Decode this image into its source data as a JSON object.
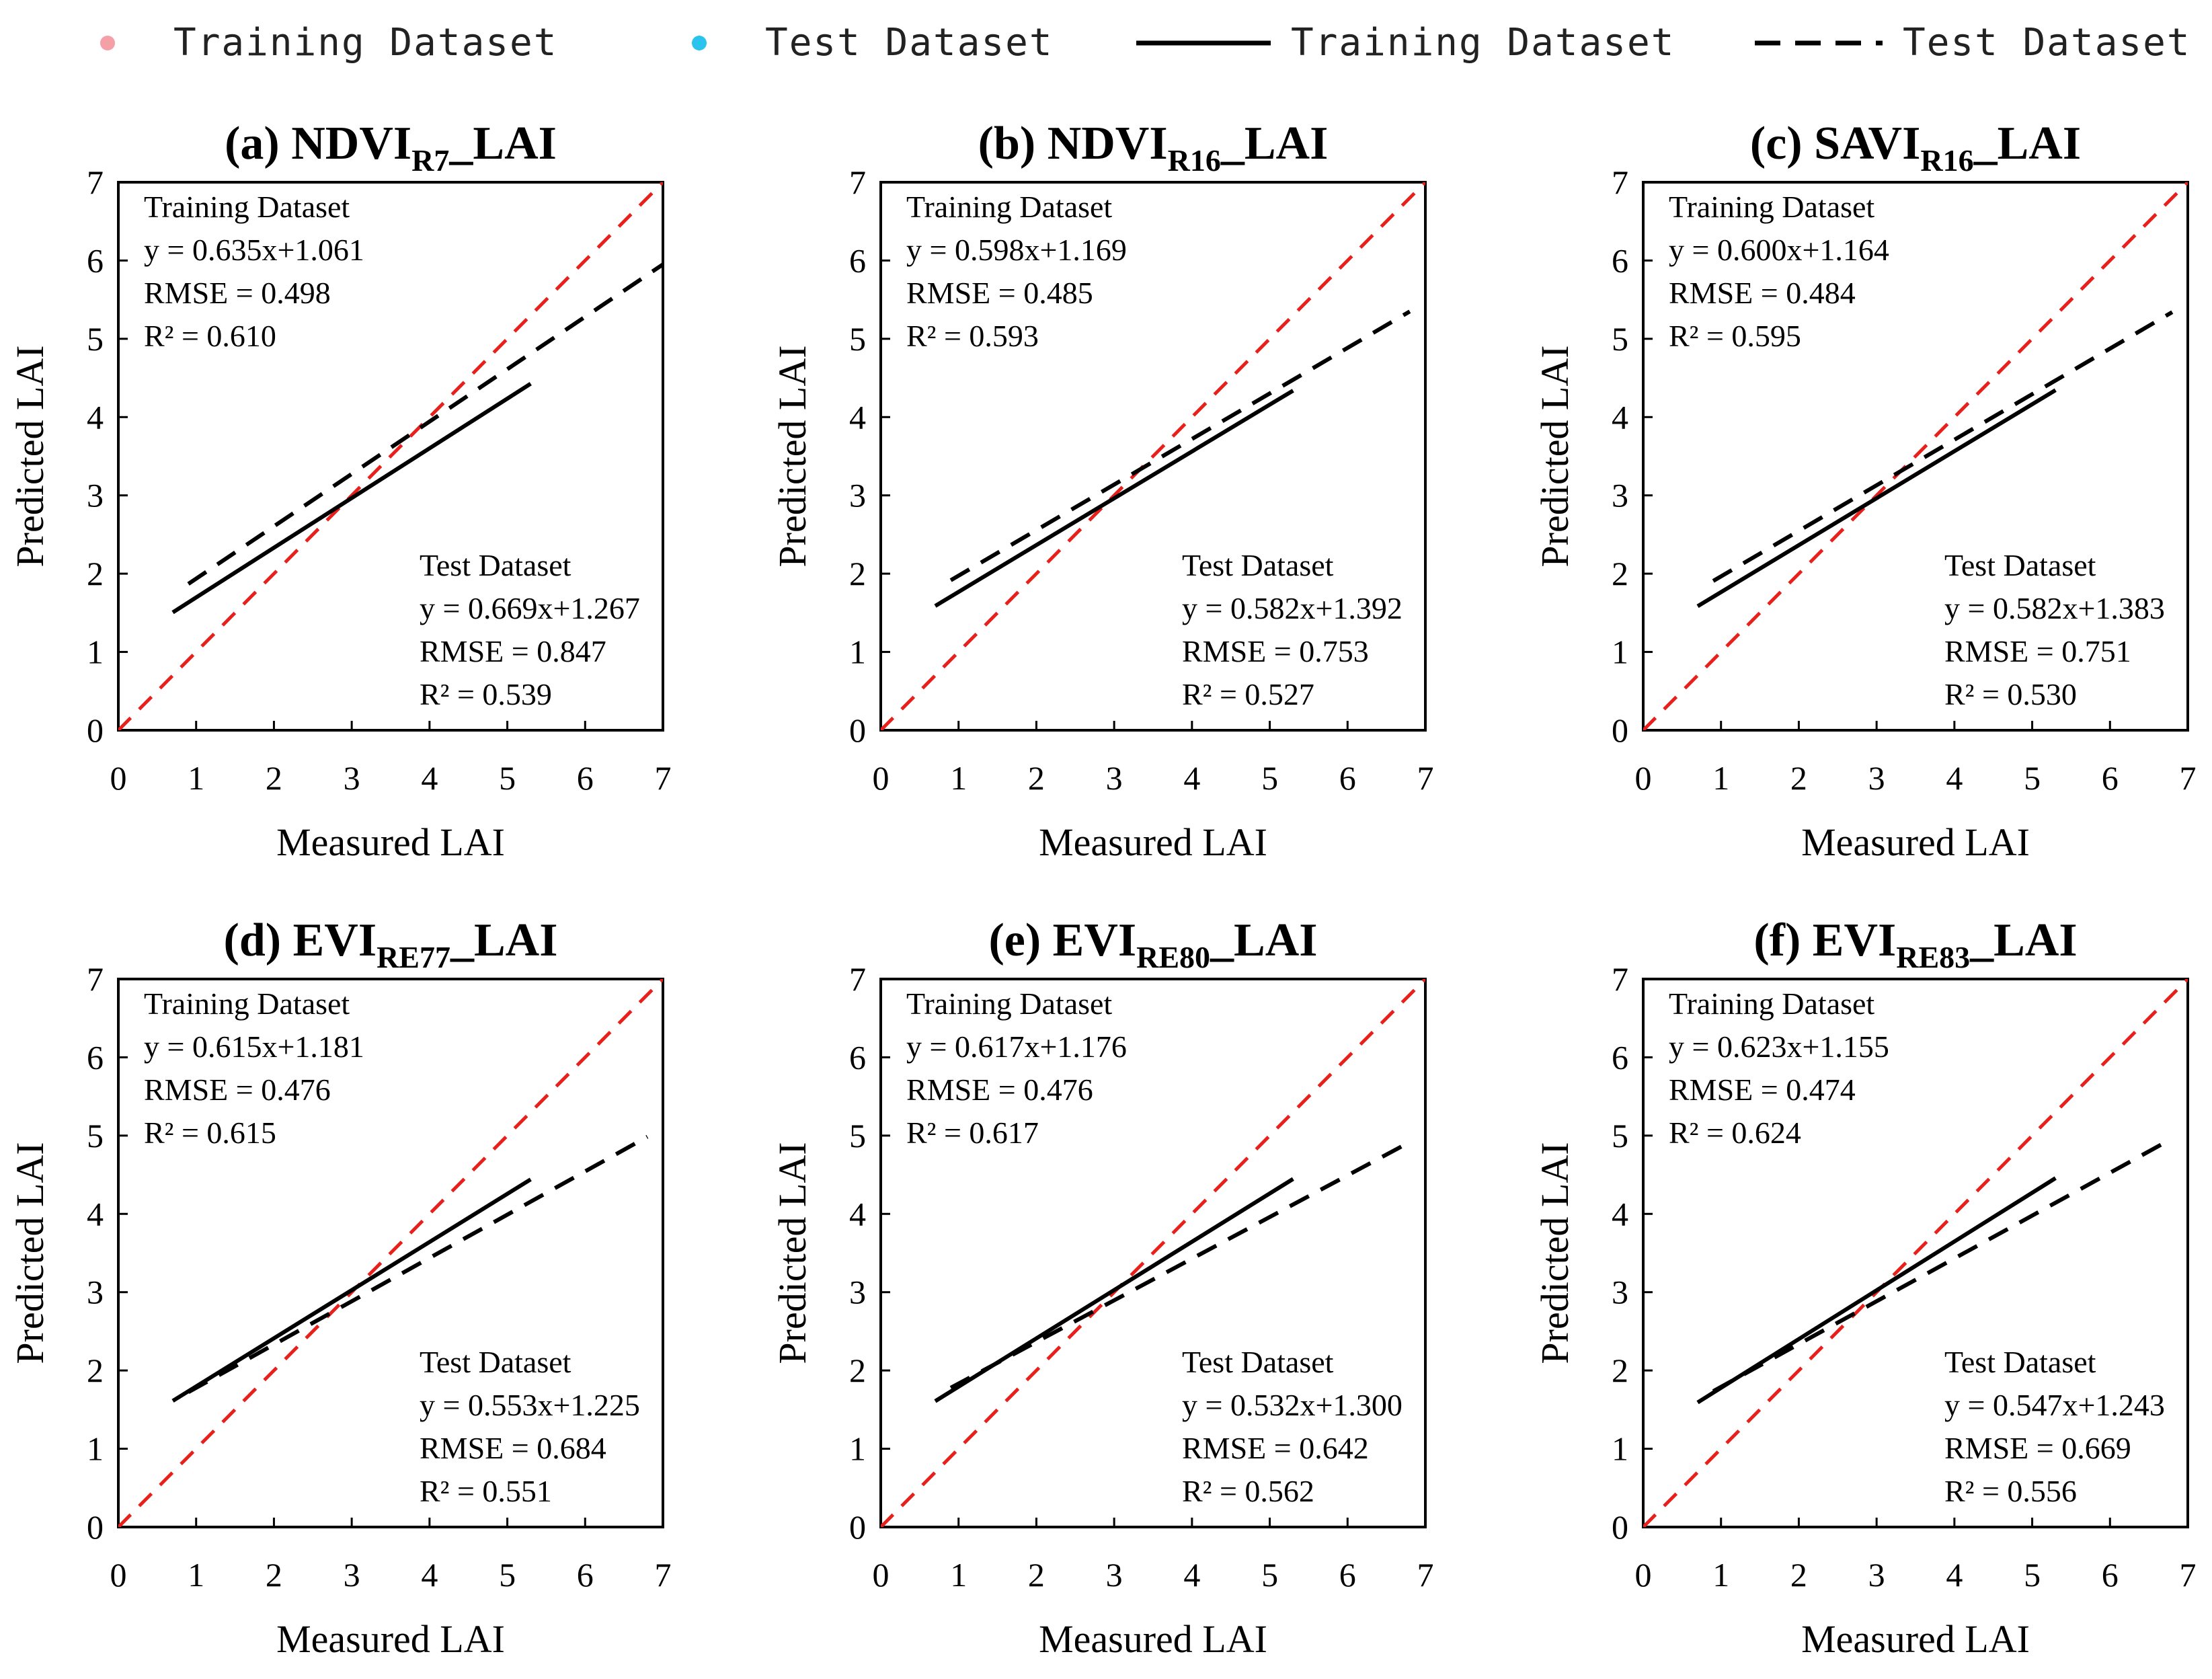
{
  "legend": {
    "items": [
      {
        "label": "Training Dataset",
        "kind": "point",
        "color": "#f4a0a6"
      },
      {
        "label": "Test Dataset",
        "kind": "point",
        "color": "#29c3f0"
      },
      {
        "label": "Training Dataset",
        "kind": "solid-line",
        "color": "#000000"
      },
      {
        "label": "Test Dataset",
        "kind": "dashed-line",
        "color": "#000000"
      }
    ]
  },
  "colors": {
    "training_point": "#f4a0a6",
    "test_point": "#29c3f0",
    "identity_line": "#e8201c",
    "fit_line": "#000000"
  },
  "chart_data": [
    {
      "type": "scatter",
      "panel": "(a)",
      "title_main": "(a) NDVI",
      "title_sub": "R7",
      "title_tail": "_LAI",
      "xlabel": "Measured LAI",
      "ylabel": "Predicted LAI",
      "xlim": [
        0,
        7
      ],
      "ylim": [
        0,
        7
      ],
      "ticks": [
        "0",
        "1",
        "2",
        "3",
        "4",
        "5",
        "6",
        "7"
      ],
      "train": {
        "heading": "Training Dataset",
        "equation": "y = 0.635x+1.061",
        "rmse": "RMSE = 0.498",
        "r2": "R² = 0.610",
        "slope": 0.635,
        "intercept": 1.061,
        "x_range": [
          0.7,
          5.3
        ]
      },
      "test": {
        "heading": "Test Dataset",
        "equation": "y = 0.669x+1.267",
        "rmse": "RMSE = 0.847",
        "r2": "R² = 0.539",
        "slope": 0.669,
        "intercept": 1.267,
        "x_range": [
          0.9,
          7.0
        ]
      }
    },
    {
      "type": "scatter",
      "panel": "(b)",
      "title_main": "(b) NDVI",
      "title_sub": "R16",
      "title_tail": "_LAI",
      "xlabel": "Measured LAI",
      "ylabel": "Predicted LAI",
      "xlim": [
        0,
        7
      ],
      "ylim": [
        0,
        7
      ],
      "ticks": [
        "0",
        "1",
        "2",
        "3",
        "4",
        "5",
        "6",
        "7"
      ],
      "train": {
        "heading": "Training Dataset",
        "equation": "y = 0.598x+1.169",
        "rmse": "RMSE = 0.485",
        "r2": "R² = 0.593",
        "slope": 0.598,
        "intercept": 1.169,
        "x_range": [
          0.7,
          5.3
        ]
      },
      "test": {
        "heading": "Test Dataset",
        "equation": "y = 0.582x+1.392",
        "rmse": "RMSE = 0.753",
        "r2": "R² = 0.527",
        "slope": 0.582,
        "intercept": 1.392,
        "x_range": [
          0.9,
          6.8
        ]
      }
    },
    {
      "type": "scatter",
      "panel": "(c)",
      "title_main": "(c) SAVI",
      "title_sub": "R16",
      "title_tail": "_LAI",
      "xlabel": "Measured LAI",
      "ylabel": "Predicted LAI",
      "xlim": [
        0,
        7
      ],
      "ylim": [
        0,
        7
      ],
      "ticks": [
        "0",
        "1",
        "2",
        "3",
        "4",
        "5",
        "6",
        "7"
      ],
      "train": {
        "heading": "Training Dataset",
        "equation": "y = 0.600x+1.164",
        "rmse": "RMSE = 0.484",
        "r2": "R² = 0.595",
        "slope": 0.6,
        "intercept": 1.164,
        "x_range": [
          0.7,
          5.3
        ]
      },
      "test": {
        "heading": "Test Dataset",
        "equation": "y = 0.582x+1.383",
        "rmse": "RMSE = 0.751",
        "r2": "R² = 0.530",
        "slope": 0.582,
        "intercept": 1.383,
        "x_range": [
          0.9,
          6.8
        ]
      }
    },
    {
      "type": "scatter",
      "panel": "(d)",
      "title_main": "(d) EVI",
      "title_sub": "RE77",
      "title_tail": "_LAI",
      "xlabel": "Measured LAI",
      "ylabel": "Predicted LAI",
      "xlim": [
        0,
        7
      ],
      "ylim": [
        0,
        7
      ],
      "ticks": [
        "0",
        "1",
        "2",
        "3",
        "4",
        "5",
        "6",
        "7"
      ],
      "train": {
        "heading": "Training Dataset",
        "equation": "y = 0.615x+1.181",
        "rmse": "RMSE = 0.476",
        "r2": "R² = 0.615",
        "slope": 0.615,
        "intercept": 1.181,
        "x_range": [
          0.7,
          5.3
        ]
      },
      "test": {
        "heading": "Test Dataset",
        "equation": "y = 0.553x+1.225",
        "rmse": "RMSE = 0.684",
        "r2": "R² = 0.551",
        "slope": 0.553,
        "intercept": 1.225,
        "x_range": [
          0.9,
          6.8
        ]
      }
    },
    {
      "type": "scatter",
      "panel": "(e)",
      "title_main": "(e) EVI",
      "title_sub": "RE80",
      "title_tail": "_LAI",
      "xlabel": "Measured LAI",
      "ylabel": "Predicted LAI",
      "xlim": [
        0,
        7
      ],
      "ylim": [
        0,
        7
      ],
      "ticks": [
        "0",
        "1",
        "2",
        "3",
        "4",
        "5",
        "6",
        "7"
      ],
      "train": {
        "heading": "Training Dataset",
        "equation": "y = 0.617x+1.176",
        "rmse": "RMSE = 0.476",
        "r2": "R² = 0.617",
        "slope": 0.617,
        "intercept": 1.176,
        "x_range": [
          0.7,
          5.3
        ]
      },
      "test": {
        "heading": "Test Dataset",
        "equation": "y = 0.532x+1.300",
        "rmse": "RMSE = 0.642",
        "r2": "R² = 0.562",
        "slope": 0.532,
        "intercept": 1.3,
        "x_range": [
          0.9,
          6.8
        ]
      }
    },
    {
      "type": "scatter",
      "panel": "(f)",
      "title_main": "(f) EVI",
      "title_sub": "RE83",
      "title_tail": "_LAI",
      "xlabel": "Measured LAI",
      "ylabel": "Predicted LAI",
      "xlim": [
        0,
        7
      ],
      "ylim": [
        0,
        7
      ],
      "ticks": [
        "0",
        "1",
        "2",
        "3",
        "4",
        "5",
        "6",
        "7"
      ],
      "train": {
        "heading": "Training Dataset",
        "equation": "y = 0.623x+1.155",
        "rmse": "RMSE = 0.474",
        "r2": "R² = 0.624",
        "slope": 0.623,
        "intercept": 1.155,
        "x_range": [
          0.7,
          5.3
        ]
      },
      "test": {
        "heading": "Test Dataset",
        "equation": "y = 0.547x+1.243",
        "rmse": "RMSE = 0.669",
        "r2": "R² = 0.556",
        "slope": 0.547,
        "intercept": 1.243,
        "x_range": [
          0.9,
          6.8
        ]
      }
    }
  ]
}
